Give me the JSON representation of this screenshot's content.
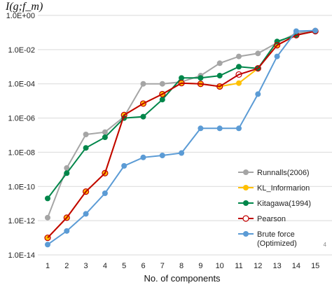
{
  "chart_data": {
    "type": "line",
    "ylabel": "I(g;f_m)",
    "xlabel": "No. of components",
    "x": [
      1,
      2,
      3,
      4,
      5,
      6,
      7,
      8,
      9,
      10,
      11,
      12,
      13,
      14,
      15
    ],
    "y_scale": "log",
    "ylim": [
      1e-14,
      1
    ],
    "y_ticks": [
      "1.0E-14",
      "1.0E-12",
      "1.0E-10",
      "1.0E-08",
      "1.0E-06",
      "1.0E-04",
      "1.0E-02",
      "1.0E+00"
    ],
    "grid": "horizontal",
    "legend_position": "bottom-right",
    "page_number": "4",
    "series": [
      {
        "name": "Runnalls(2006)",
        "color": "#a5a5a5",
        "marker": "filled",
        "values": [
          1.5e-12,
          1.2e-09,
          1.1e-07,
          1.5e-07,
          1.2e-06,
          0.0001,
          0.0001,
          0.00013,
          0.0003,
          0.0016,
          0.004,
          0.006,
          0.025,
          0.09,
          0.13
        ]
      },
      {
        "name": "KL_Informarion",
        "color": "#ffc000",
        "marker": "filled",
        "values": [
          1e-13,
          1.5e-12,
          5e-11,
          6e-10,
          1.5e-06,
          7e-06,
          2.5e-05,
          0.00011,
          0.0001,
          7e-05,
          0.00011,
          0.0008,
          0.018,
          0.07,
          0.12
        ]
      },
      {
        "name": "Kitagawa(1994)",
        "color": "#00864a",
        "marker": "filled",
        "values": [
          2e-11,
          6e-10,
          1.8e-08,
          7.5e-08,
          1e-06,
          1.2e-06,
          1.2e-05,
          0.00022,
          0.00022,
          0.0003,
          0.001,
          0.0008,
          0.03,
          0.07,
          0.12
        ]
      },
      {
        "name": "Pearson",
        "color": "#c00000",
        "marker": "hollow",
        "values": [
          1e-13,
          1.5e-12,
          5e-11,
          6e-10,
          1.5e-06,
          7e-06,
          2.5e-05,
          0.00011,
          0.0001,
          7e-05,
          0.00035,
          0.0008,
          0.018,
          0.07,
          0.12
        ]
      },
      {
        "name": "Brute force\n(Optimized)",
        "color": "#5b9bd5",
        "marker": "filled",
        "values": [
          4e-14,
          2.5e-13,
          2.5e-12,
          4e-11,
          1.6e-09,
          5e-09,
          6.5e-09,
          9e-09,
          2.5e-07,
          2.5e-07,
          2.5e-07,
          2.5e-05,
          0.004,
          0.12,
          0.13
        ]
      }
    ]
  }
}
